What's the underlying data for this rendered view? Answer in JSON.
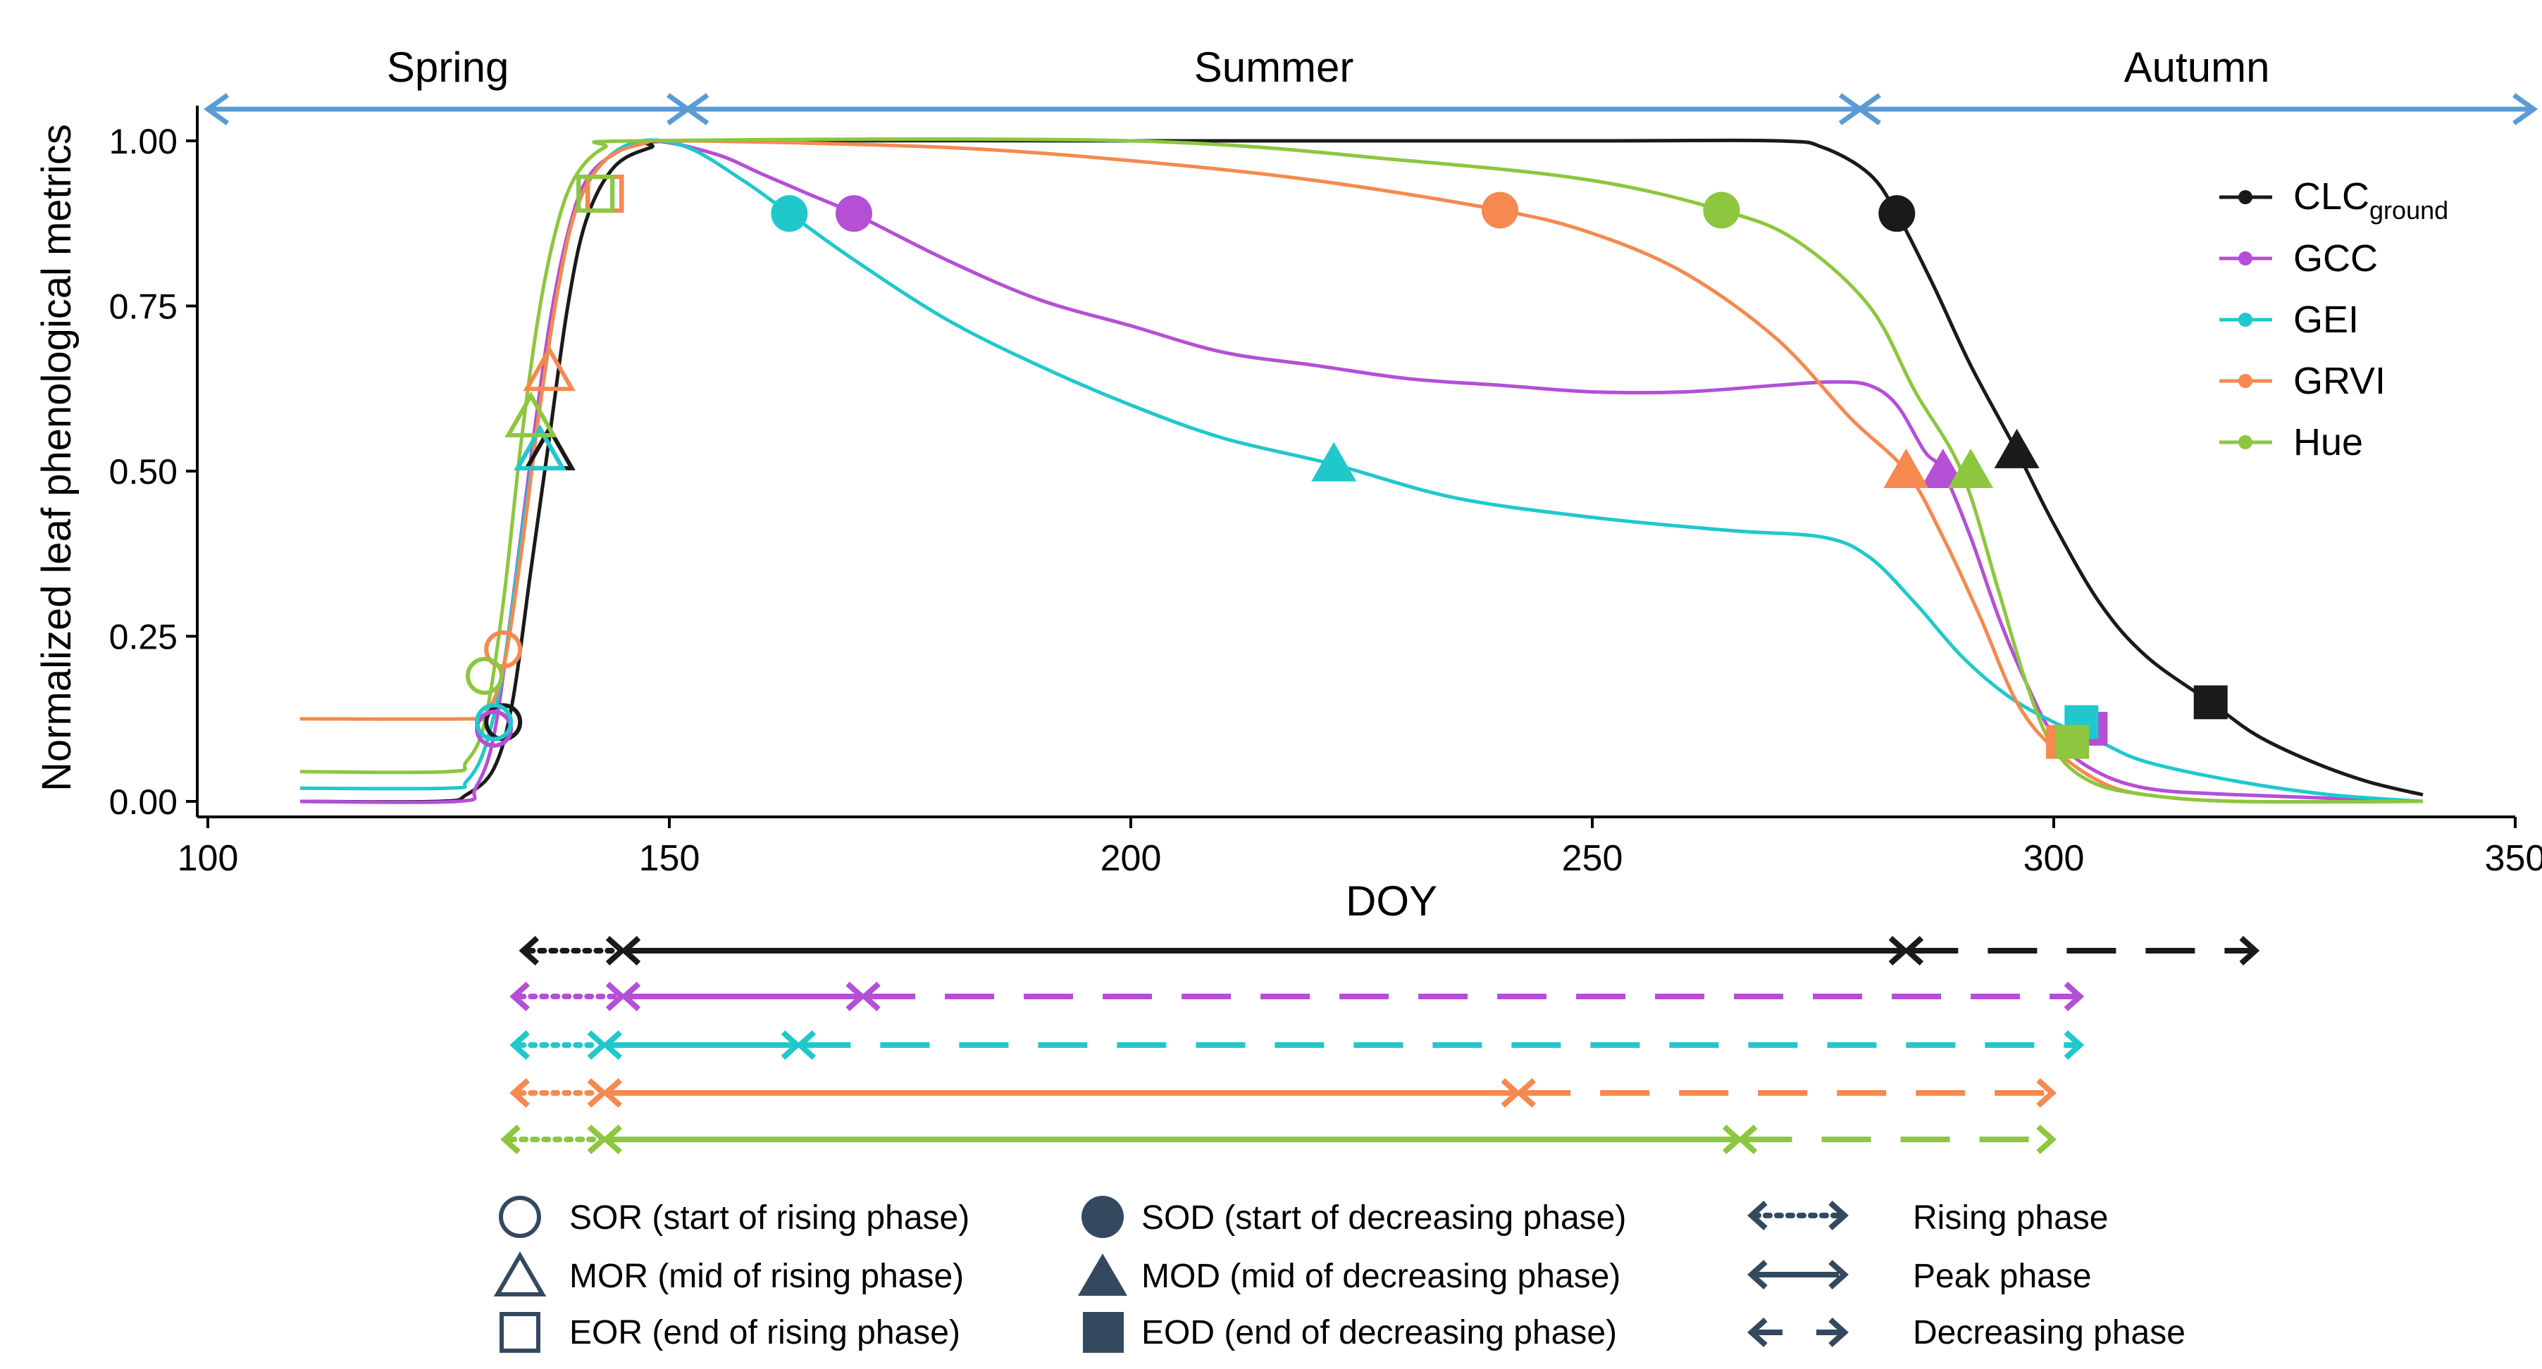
{
  "chart_data": {
    "type": "line",
    "ylabel": "Normalized leaf phenological metrics",
    "xlabel": "DOY",
    "xlim": [
      100,
      350
    ],
    "ylim": [
      0.0,
      1.0
    ],
    "x_ticks": [
      100,
      150,
      200,
      250,
      300,
      350
    ],
    "y_ticks": [
      0.0,
      0.25,
      0.5,
      0.75,
      1.0
    ],
    "x_tick_labels": [
      "100",
      "150",
      "200",
      "250",
      "300",
      "350"
    ],
    "y_tick_labels": [
      "0.00",
      "0.25",
      "0.50",
      "0.75",
      "1.00"
    ],
    "grid": false,
    "legend_position": "top-right",
    "seasons": [
      {
        "label": "Spring",
        "start": 100,
        "end": 152
      },
      {
        "label": "Summer",
        "start": 152,
        "end": 279
      },
      {
        "label": "Autumn",
        "start": 279,
        "end": 352
      }
    ],
    "series": [
      {
        "name": "CLC",
        "name_sub": "ground",
        "color": "#1a1a1a",
        "baseline": 0.0,
        "points": [
          [
            110,
            0.0
          ],
          [
            125,
            0.0
          ],
          [
            128,
            0.01
          ],
          [
            131,
            0.05
          ],
          [
            133,
            0.15
          ],
          [
            135,
            0.35
          ],
          [
            137,
            0.55
          ],
          [
            139,
            0.75
          ],
          [
            141,
            0.88
          ],
          [
            144,
            0.96
          ],
          [
            148,
            0.99
          ],
          [
            152,
            1.0
          ],
          [
            200,
            1.0
          ],
          [
            250,
            1.0
          ],
          [
            270,
            1.0
          ],
          [
            275,
            0.99
          ],
          [
            280,
            0.95
          ],
          [
            283,
            0.89
          ],
          [
            287,
            0.78
          ],
          [
            291,
            0.66
          ],
          [
            296,
            0.53
          ],
          [
            300,
            0.42
          ],
          [
            305,
            0.3
          ],
          [
            310,
            0.22
          ],
          [
            317,
            0.15
          ],
          [
            322,
            0.1
          ],
          [
            328,
            0.06
          ],
          [
            334,
            0.03
          ],
          [
            340,
            0.01
          ]
        ],
        "markers": {
          "SOR": [
            132,
            0.12
          ],
          "MOR": [
            137,
            0.53
          ],
          "EOR": [
            143,
            0.92
          ],
          "SOD": [
            283,
            0.89
          ],
          "MOD": [
            296,
            0.53
          ],
          "EOD": [
            317,
            0.15
          ]
        },
        "phases": {
          "rising": [
            134,
            145
          ],
          "peak": [
            145,
            284
          ],
          "decreasing": [
            284,
            322
          ]
        }
      },
      {
        "name": "GCC",
        "color": "#b44fd6",
        "baseline": 0.0,
        "points": [
          [
            110,
            0.0
          ],
          [
            127,
            0.0
          ],
          [
            129,
            0.02
          ],
          [
            131,
            0.1
          ],
          [
            133,
            0.3
          ],
          [
            135,
            0.52
          ],
          [
            137,
            0.72
          ],
          [
            139,
            0.86
          ],
          [
            141,
            0.94
          ],
          [
            144,
            0.98
          ],
          [
            148,
            1.0
          ],
          [
            155,
            0.98
          ],
          [
            160,
            0.95
          ],
          [
            165,
            0.92
          ],
          [
            170,
            0.89
          ],
          [
            180,
            0.82
          ],
          [
            190,
            0.76
          ],
          [
            200,
            0.72
          ],
          [
            210,
            0.68
          ],
          [
            220,
            0.66
          ],
          [
            230,
            0.64
          ],
          [
            240,
            0.63
          ],
          [
            250,
            0.62
          ],
          [
            260,
            0.62
          ],
          [
            270,
            0.63
          ],
          [
            276,
            0.635
          ],
          [
            280,
            0.63
          ],
          [
            283,
            0.6
          ],
          [
            286,
            0.53
          ],
          [
            288,
            0.5
          ],
          [
            291,
            0.4
          ],
          [
            294,
            0.28
          ],
          [
            297,
            0.18
          ],
          [
            300,
            0.1
          ],
          [
            304,
            0.05
          ],
          [
            310,
            0.02
          ],
          [
            320,
            0.01
          ],
          [
            340,
            0.0
          ]
        ],
        "markers": {
          "SOR": [
            131,
            0.11
          ],
          "MOR": [
            136,
            0.53
          ],
          "EOR": [
            143,
            0.92
          ],
          "SOD": [
            170,
            0.89
          ],
          "MOD": [
            288,
            0.5
          ],
          "EOD": [
            304,
            0.11
          ]
        },
        "phases": {
          "rising": [
            133,
            145
          ],
          "peak": [
            145,
            171
          ],
          "decreasing": [
            171,
            303
          ]
        }
      },
      {
        "name": "GEI",
        "color": "#20c8cc",
        "baseline": 0.02,
        "points": [
          [
            110,
            0.02
          ],
          [
            126,
            0.02
          ],
          [
            128,
            0.03
          ],
          [
            130,
            0.08
          ],
          [
            132,
            0.2
          ],
          [
            134,
            0.4
          ],
          [
            136,
            0.6
          ],
          [
            138,
            0.78
          ],
          [
            140,
            0.9
          ],
          [
            143,
            0.97
          ],
          [
            147,
            1.0
          ],
          [
            152,
            0.99
          ],
          [
            158,
            0.94
          ],
          [
            163,
            0.89
          ],
          [
            170,
            0.82
          ],
          [
            180,
            0.73
          ],
          [
            190,
            0.66
          ],
          [
            200,
            0.6
          ],
          [
            210,
            0.55
          ],
          [
            222,
            0.51
          ],
          [
            235,
            0.46
          ],
          [
            250,
            0.43
          ],
          [
            265,
            0.41
          ],
          [
            275,
            0.4
          ],
          [
            280,
            0.37
          ],
          [
            285,
            0.3
          ],
          [
            290,
            0.22
          ],
          [
            295,
            0.16
          ],
          [
            300,
            0.12
          ],
          [
            305,
            0.09
          ],
          [
            310,
            0.06
          ],
          [
            320,
            0.03
          ],
          [
            330,
            0.01
          ],
          [
            340,
            0.0
          ]
        ],
        "markers": {
          "SOR": [
            131,
            0.12
          ],
          "MOR": [
            136,
            0.53
          ],
          "EOR": [
            142,
            0.92
          ],
          "SOD": [
            163,
            0.89
          ],
          "MOD": [
            222,
            0.51
          ],
          "EOD": [
            303,
            0.12
          ]
        },
        "phases": {
          "rising": [
            133,
            143
          ],
          "peak": [
            143,
            164
          ],
          "decreasing": [
            164,
            303
          ]
        }
      },
      {
        "name": "GRVI",
        "color": "#f5894f",
        "baseline": 0.125,
        "points": [
          [
            110,
            0.125
          ],
          [
            128,
            0.125
          ],
          [
            130,
            0.13
          ],
          [
            132,
            0.2
          ],
          [
            134,
            0.38
          ],
          [
            136,
            0.6
          ],
          [
            138,
            0.78
          ],
          [
            140,
            0.9
          ],
          [
            143,
            0.97
          ],
          [
            147,
            0.995
          ],
          [
            152,
            1.0
          ],
          [
            180,
            0.99
          ],
          [
            200,
            0.97
          ],
          [
            220,
            0.94
          ],
          [
            240,
            0.895
          ],
          [
            250,
            0.86
          ],
          [
            260,
            0.8
          ],
          [
            270,
            0.7
          ],
          [
            278,
            0.58
          ],
          [
            284,
            0.5
          ],
          [
            288,
            0.4
          ],
          [
            292,
            0.28
          ],
          [
            296,
            0.15
          ],
          [
            300,
            0.08
          ],
          [
            305,
            0.03
          ],
          [
            310,
            0.01
          ],
          [
            320,
            0.0
          ],
          [
            340,
            0.0
          ]
        ],
        "markers": {
          "SOR": [
            132,
            0.23
          ],
          "MOR": [
            137,
            0.65
          ],
          "EOR": [
            143,
            0.92
          ],
          "SOD": [
            240,
            0.895
          ],
          "MOD": [
            284,
            0.5
          ],
          "EOD": [
            301,
            0.09
          ]
        },
        "phases": {
          "rising": [
            133,
            143
          ],
          "peak": [
            143,
            242
          ],
          "decreasing": [
            242,
            300
          ]
        }
      },
      {
        "name": "Hue",
        "color": "#8dc63f",
        "baseline": 0.045,
        "points": [
          [
            110,
            0.045
          ],
          [
            126,
            0.045
          ],
          [
            128,
            0.06
          ],
          [
            130,
            0.12
          ],
          [
            132,
            0.3
          ],
          [
            134,
            0.55
          ],
          [
            136,
            0.75
          ],
          [
            138,
            0.88
          ],
          [
            140,
            0.95
          ],
          [
            143,
            0.99
          ],
          [
            147,
            1.0
          ],
          [
            200,
            1.0
          ],
          [
            230,
            0.97
          ],
          [
            250,
            0.94
          ],
          [
            264,
            0.895
          ],
          [
            272,
            0.85
          ],
          [
            280,
            0.75
          ],
          [
            285,
            0.62
          ],
          [
            290,
            0.5
          ],
          [
            294,
            0.32
          ],
          [
            297,
            0.18
          ],
          [
            300,
            0.08
          ],
          [
            304,
            0.03
          ],
          [
            310,
            0.01
          ],
          [
            320,
            0.0
          ],
          [
            340,
            0.0
          ]
        ],
        "markers": {
          "SOR": [
            130,
            0.19
          ],
          "MOR": [
            135,
            0.58
          ],
          "EOR": [
            142,
            0.92
          ],
          "SOD": [
            264,
            0.895
          ],
          "MOD": [
            291,
            0.5
          ],
          "EOD": [
            302,
            0.09
          ]
        },
        "phases": {
          "rising": [
            132,
            143
          ],
          "peak": [
            143,
            266
          ],
          "decreasing": [
            266,
            300
          ]
        }
      }
    ]
  },
  "legend_items": [
    {
      "name": "CLC",
      "sub": "ground"
    },
    {
      "name": "GCC",
      "sub": ""
    },
    {
      "name": "GEI",
      "sub": ""
    },
    {
      "name": "GRVI",
      "sub": ""
    },
    {
      "name": "Hue",
      "sub": ""
    }
  ],
  "key": {
    "sor": "SOR (start of rising phase)",
    "mor": "MOR (mid of rising phase)",
    "eor": "EOR (end of rising phase)",
    "sod": "SOD (start of decreasing phase)",
    "mod": "MOD (mid of decreasing phase)",
    "eod": "EOD (end of decreasing phase)",
    "rising": "Rising phase",
    "peak": "Peak phase",
    "decreasing": "Decreasing phase",
    "key_color": "#34495e"
  }
}
